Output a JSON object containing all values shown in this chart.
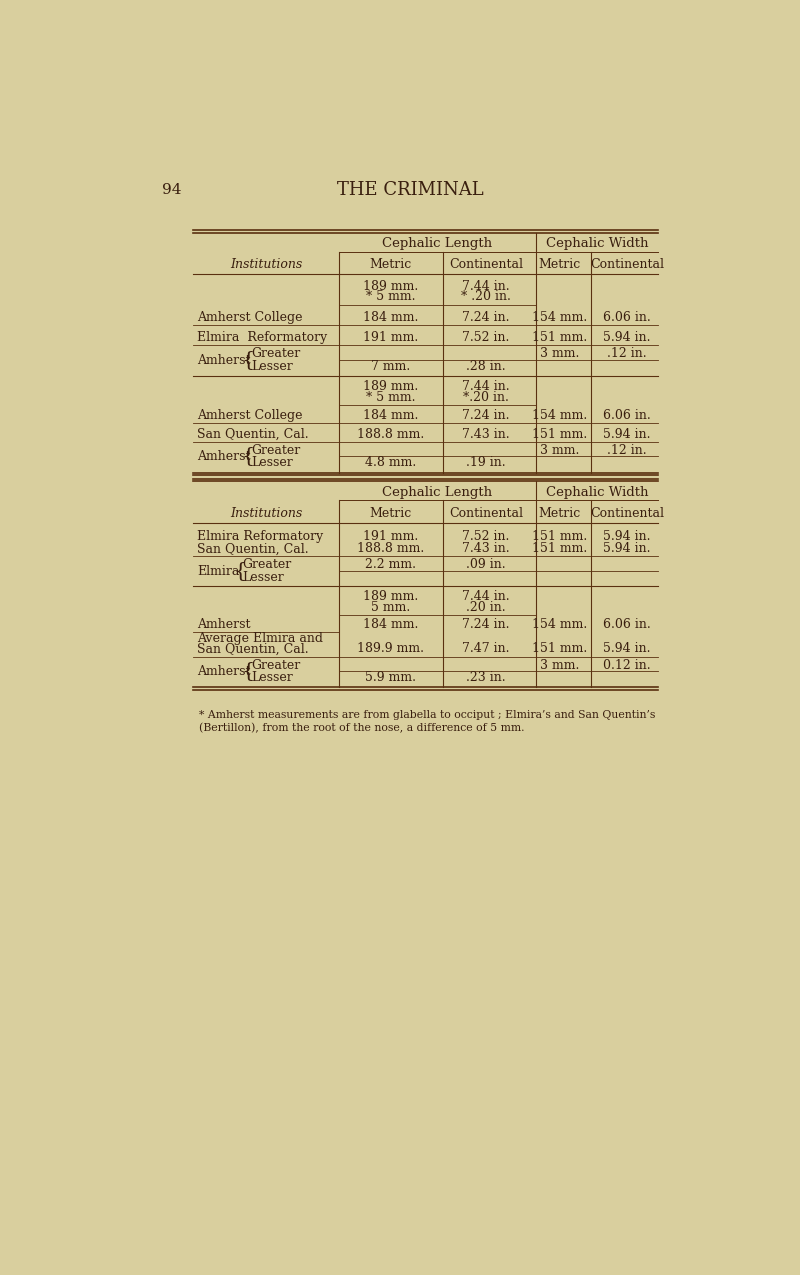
{
  "bg_color": "#d9cf9e",
  "text_color": "#3a1f0f",
  "line_color": "#5a3010",
  "page_num": "94",
  "page_title": "THE CRIMINAL",
  "footnote_line1": "* Amherst measurements are from glabella to occiput ; Elmira’s and San Quentin’s",
  "footnote_line2": "(Bertillon), from the root of the nose, a difference of 5 mm."
}
